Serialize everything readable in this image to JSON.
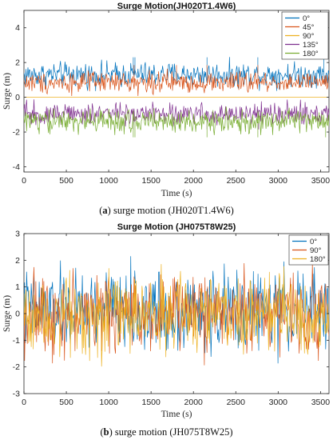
{
  "captions": [
    {
      "label": "a",
      "text": " surge motion (JH020T1.4W6)"
    },
    {
      "label": "b",
      "text": " surge motion (JH075T8W25)"
    }
  ],
  "chart_data": [
    {
      "type": "line",
      "title": "Surge Motion(JH020T1.4W6)",
      "xlabel": "Time (s)",
      "ylabel": "Surge (m)",
      "xlim": [
        0,
        3600
      ],
      "ylim": [
        -4.3,
        5
      ],
      "xticks": [
        "0",
        "500",
        "1000",
        "1500",
        "2000",
        "2500",
        "3000",
        "3500"
      ],
      "yticks": [
        "-4",
        "-2",
        "0",
        "2",
        "4"
      ],
      "grid": false,
      "legend_position": "top-right",
      "series": [
        {
          "name": "0°",
          "color": "#0072BD",
          "mean": 1.3,
          "amplitude": 0.35,
          "spikes": [
            1290,
            1310,
            2160,
            2760,
            3540
          ]
        },
        {
          "name": "45°",
          "color": "#D95319",
          "mean": 0.85,
          "amplitude": 0.3,
          "spikes": [
            1300,
            1800,
            2160,
            2760
          ]
        },
        {
          "name": "90°",
          "color": "#EDB120",
          "mean": 0.0,
          "amplitude": 0.0,
          "spikes": []
        },
        {
          "name": "135°",
          "color": "#7E2F8E",
          "mean": -0.95,
          "amplitude": 0.3,
          "spikes": [
            1290,
            2160,
            2770
          ]
        },
        {
          "name": "180°",
          "color": "#77AC30",
          "mean": -1.4,
          "amplitude": 0.35,
          "spikes": [
            1290,
            1310,
            2160,
            2760,
            3560
          ]
        }
      ]
    },
    {
      "type": "line",
      "title": "Surge Motion (JH075T8W25)",
      "xlabel": "Time (s)",
      "ylabel": "Surge (m)",
      "xlim": [
        0,
        3600
      ],
      "ylim": [
        -3,
        3
      ],
      "xticks": [
        "0",
        "500",
        "1000",
        "1500",
        "2000",
        "2500",
        "3000",
        "3500"
      ],
      "yticks": [
        "-3",
        "-2",
        "-1",
        "0",
        "1",
        "2",
        "3"
      ],
      "grid": false,
      "legend_position": "top-right",
      "series": [
        {
          "name": "0°",
          "color": "#0072BD",
          "mean": 0.1,
          "amplitude": 0.75
        },
        {
          "name": "90°",
          "color": "#D95319",
          "mean": 0.05,
          "amplitude": 0.7
        },
        {
          "name": "180°",
          "color": "#EDB120",
          "mean": 0.0,
          "amplitude": 0.72
        }
      ]
    }
  ]
}
